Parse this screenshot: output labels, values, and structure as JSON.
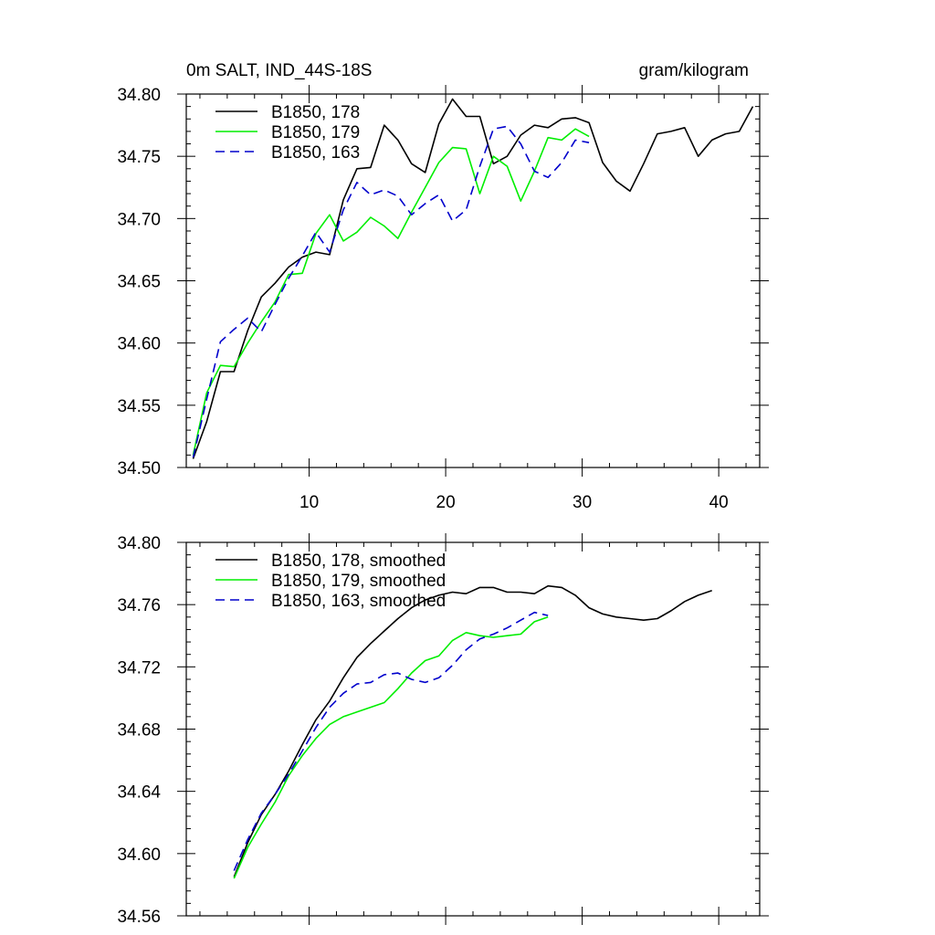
{
  "chart_data": [
    {
      "type": "line",
      "title_left": "0m SALT, IND_44S-18S",
      "title_right": "gram/kilogram",
      "xlabel": "",
      "ylabel": "",
      "xlim": [
        1,
        43
      ],
      "ylim": [
        34.5,
        34.8
      ],
      "yticks": [
        "34.50",
        "34.55",
        "34.60",
        "34.65",
        "34.70",
        "34.75",
        "34.80"
      ],
      "xticks": [
        "10",
        "20",
        "30",
        "40"
      ],
      "legend_position": "top-left",
      "series": [
        {
          "name": "B1850, 178",
          "color": "#000000",
          "dash": "solid",
          "x": [
            1.5,
            2.5,
            3.5,
            4.5,
            5.5,
            6.5,
            7.5,
            8.5,
            9.5,
            10.5,
            11.5,
            12.5,
            13.5,
            14.5,
            15.5,
            16.5,
            17.5,
            18.5,
            19.5,
            20.5,
            21.5,
            22.5,
            23.5,
            24.5,
            25.5,
            26.5,
            27.5,
            28.5,
            29.5,
            30.5,
            31.5,
            32.5,
            33.5,
            34.5,
            35.5,
            36.5,
            37.5,
            38.5,
            39.5,
            40.5,
            41.5,
            42.5
          ],
          "y": [
            34.507,
            34.537,
            34.577,
            34.577,
            34.61,
            34.637,
            34.648,
            34.661,
            34.669,
            34.673,
            34.671,
            34.715,
            34.74,
            34.741,
            34.775,
            34.763,
            34.744,
            34.737,
            34.776,
            34.796,
            34.782,
            34.782,
            34.744,
            34.75,
            34.767,
            34.775,
            34.773,
            34.78,
            34.781,
            34.777,
            34.745,
            34.73,
            34.722,
            34.744,
            34.768,
            34.77,
            34.773,
            34.75,
            34.763,
            34.768,
            34.77,
            34.79
          ]
        },
        {
          "name": "B1850, 179",
          "color": "#00ee00",
          "dash": "solid",
          "x": [
            1.5,
            2.5,
            3.5,
            4.5,
            5.5,
            6.5,
            7.5,
            8.5,
            9.5,
            10.5,
            11.5,
            12.5,
            13.5,
            14.5,
            15.5,
            16.5,
            17.5,
            18.5,
            19.5,
            20.5,
            21.5,
            22.5,
            23.5,
            24.5,
            25.5,
            26.5,
            27.5,
            28.5,
            29.5,
            30.5
          ],
          "y": [
            34.51,
            34.56,
            34.582,
            34.581,
            34.6,
            34.617,
            34.633,
            34.655,
            34.656,
            34.688,
            34.703,
            34.682,
            34.689,
            34.701,
            34.694,
            34.684,
            34.705,
            34.725,
            34.745,
            34.757,
            34.756,
            34.72,
            34.75,
            34.742,
            34.714,
            34.738,
            34.765,
            34.763,
            34.772,
            34.766
          ]
        },
        {
          "name": "B1850, 163",
          "color": "#0000cc",
          "dash": "dashed",
          "x": [
            1.5,
            2.5,
            3.5,
            4.5,
            5.5,
            6.5,
            7.5,
            8.5,
            9.5,
            10.5,
            11.5,
            12.5,
            13.5,
            14.5,
            15.5,
            16.5,
            17.5,
            18.5,
            19.5,
            20.5,
            21.5,
            22.5,
            23.5,
            24.5,
            25.5,
            26.5,
            27.5,
            28.5,
            29.5,
            30.5
          ],
          "y": [
            34.508,
            34.555,
            34.601,
            34.611,
            34.62,
            34.609,
            34.631,
            34.652,
            34.67,
            34.689,
            34.673,
            34.707,
            34.729,
            34.719,
            34.723,
            34.718,
            34.703,
            34.712,
            34.719,
            34.698,
            34.707,
            34.742,
            34.772,
            34.774,
            34.76,
            34.738,
            34.733,
            34.745,
            34.763,
            34.761
          ]
        }
      ]
    },
    {
      "type": "line",
      "xlabel": "",
      "ylabel": "",
      "xlim": [
        1,
        43
      ],
      "ylim": [
        34.56,
        34.8
      ],
      "yticks": [
        "34.56",
        "34.60",
        "34.64",
        "34.68",
        "34.72",
        "34.76",
        "34.80"
      ],
      "legend_position": "top-left",
      "series": [
        {
          "name": "B1850, 178, smoothed",
          "color": "#000000",
          "dash": "solid",
          "x": [
            4.5,
            5.5,
            6.5,
            7.5,
            8.5,
            9.5,
            10.5,
            11.5,
            12.5,
            13.5,
            14.5,
            15.5,
            16.5,
            17.5,
            18.5,
            19.5,
            20.5,
            21.5,
            22.5,
            23.5,
            24.5,
            25.5,
            26.5,
            27.5,
            28.5,
            29.5,
            30.5,
            31.5,
            32.5,
            33.5,
            34.5,
            35.5,
            36.5,
            37.5,
            38.5,
            39.5
          ],
          "y": [
            34.585,
            34.607,
            34.625,
            34.638,
            34.653,
            34.67,
            34.686,
            34.698,
            34.713,
            34.726,
            34.735,
            34.743,
            34.751,
            34.758,
            34.763,
            34.766,
            34.768,
            34.767,
            34.771,
            34.771,
            34.768,
            34.768,
            34.767,
            34.772,
            34.771,
            34.766,
            34.758,
            34.754,
            34.752,
            34.751,
            34.75,
            34.751,
            34.756,
            34.762,
            34.766,
            34.769
          ]
        },
        {
          "name": "B1850, 179, smoothed",
          "color": "#00ee00",
          "dash": "solid",
          "x": [
            4.5,
            5.5,
            6.5,
            7.5,
            8.5,
            9.5,
            10.5,
            11.5,
            12.5,
            13.5,
            14.5,
            15.5,
            16.5,
            17.5,
            18.5,
            19.5,
            20.5,
            21.5,
            22.5,
            23.5,
            24.5,
            25.5,
            26.5,
            27.5
          ],
          "y": [
            34.584,
            34.604,
            34.619,
            34.633,
            34.65,
            34.663,
            34.674,
            34.683,
            34.688,
            34.691,
            34.694,
            34.697,
            34.706,
            34.716,
            34.724,
            34.727,
            34.737,
            34.742,
            34.74,
            34.739,
            34.74,
            34.741,
            34.749,
            34.752
          ]
        },
        {
          "name": "B1850, 163, smoothed",
          "color": "#0000cc",
          "dash": "dashed",
          "x": [
            4.5,
            5.5,
            6.5,
            7.5,
            8.5,
            9.5,
            10.5,
            11.5,
            12.5,
            13.5,
            14.5,
            15.5,
            16.5,
            17.5,
            18.5,
            19.5,
            20.5,
            21.5,
            22.5,
            23.5,
            24.5,
            25.5,
            26.5,
            27.5
          ],
          "y": [
            34.589,
            34.609,
            34.626,
            34.638,
            34.651,
            34.666,
            34.681,
            34.694,
            34.703,
            34.709,
            34.71,
            34.715,
            34.716,
            34.712,
            34.71,
            34.713,
            34.721,
            34.731,
            34.738,
            34.741,
            34.745,
            34.75,
            34.755,
            34.753
          ]
        }
      ]
    }
  ]
}
